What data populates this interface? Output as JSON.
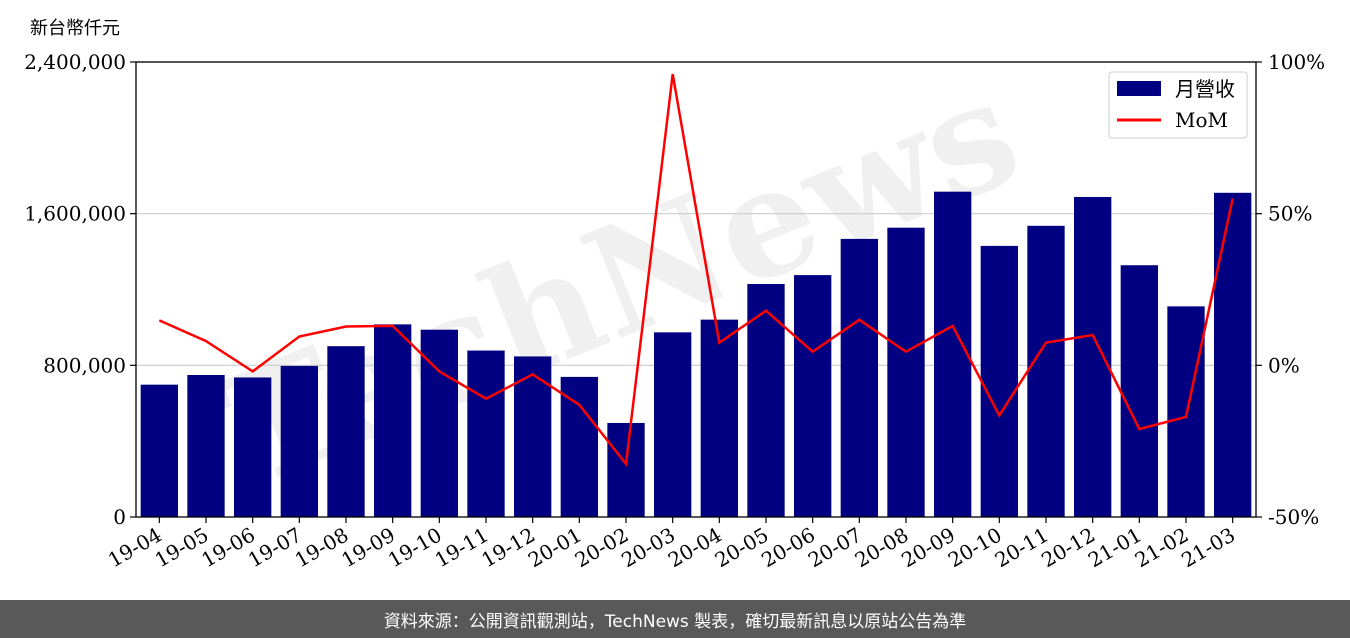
{
  "chart_data": {
    "type": "bar",
    "ylabel": "新台幣仟元",
    "categories": [
      "19-04",
      "19-05",
      "19-06",
      "19-07",
      "19-08",
      "19-09",
      "19-10",
      "19-11",
      "19-12",
      "20-01",
      "20-02",
      "20-03",
      "20-04",
      "20-05",
      "20-06",
      "20-07",
      "20-08",
      "20-09",
      "20-10",
      "20-11",
      "20-12",
      "21-01",
      "21-02",
      "21-03"
    ],
    "series": [
      {
        "name": "月營收",
        "type": "bar",
        "color": "#000080",
        "axis": "left",
        "values": [
          698000,
          749000,
          736000,
          797000,
          901000,
          1016000,
          988000,
          878000,
          847000,
          739000,
          496000,
          974000,
          1041000,
          1229000,
          1276000,
          1467000,
          1526000,
          1716000,
          1430000,
          1536000,
          1688000,
          1328000,
          1111000,
          1710000
        ]
      },
      {
        "name": "MoM",
        "type": "line",
        "color": "#ff0000",
        "axis": "right",
        "values": [
          14.8,
          8.0,
          -2.0,
          9.5,
          12.8,
          13.0,
          -2.0,
          -11.0,
          -3.0,
          -13.0,
          -32.5,
          96.0,
          7.5,
          18.0,
          4.5,
          15.0,
          4.5,
          13.0,
          -16.5,
          7.5,
          10.0,
          -21.0,
          -17.0,
          55.0
        ]
      }
    ],
    "ylim": [
      0,
      2400000
    ],
    "yticks": [
      "0",
      "800,000",
      "1,600,000",
      "2,400,000"
    ],
    "ytick_values": [
      0,
      800000,
      1600000,
      2400000
    ],
    "y2lim": [
      -50,
      100
    ],
    "y2ticks": [
      "-50%",
      "0%",
      "50%",
      "100%"
    ],
    "y2tick_values": [
      -50,
      0,
      50,
      100
    ],
    "grid": true,
    "legend_position": "top-right",
    "watermark": "TechNews"
  },
  "footer": {
    "source_text": "資料來源：公開資訊觀測站，TechNews 製表，確切最新訊息以原站公告為準"
  }
}
